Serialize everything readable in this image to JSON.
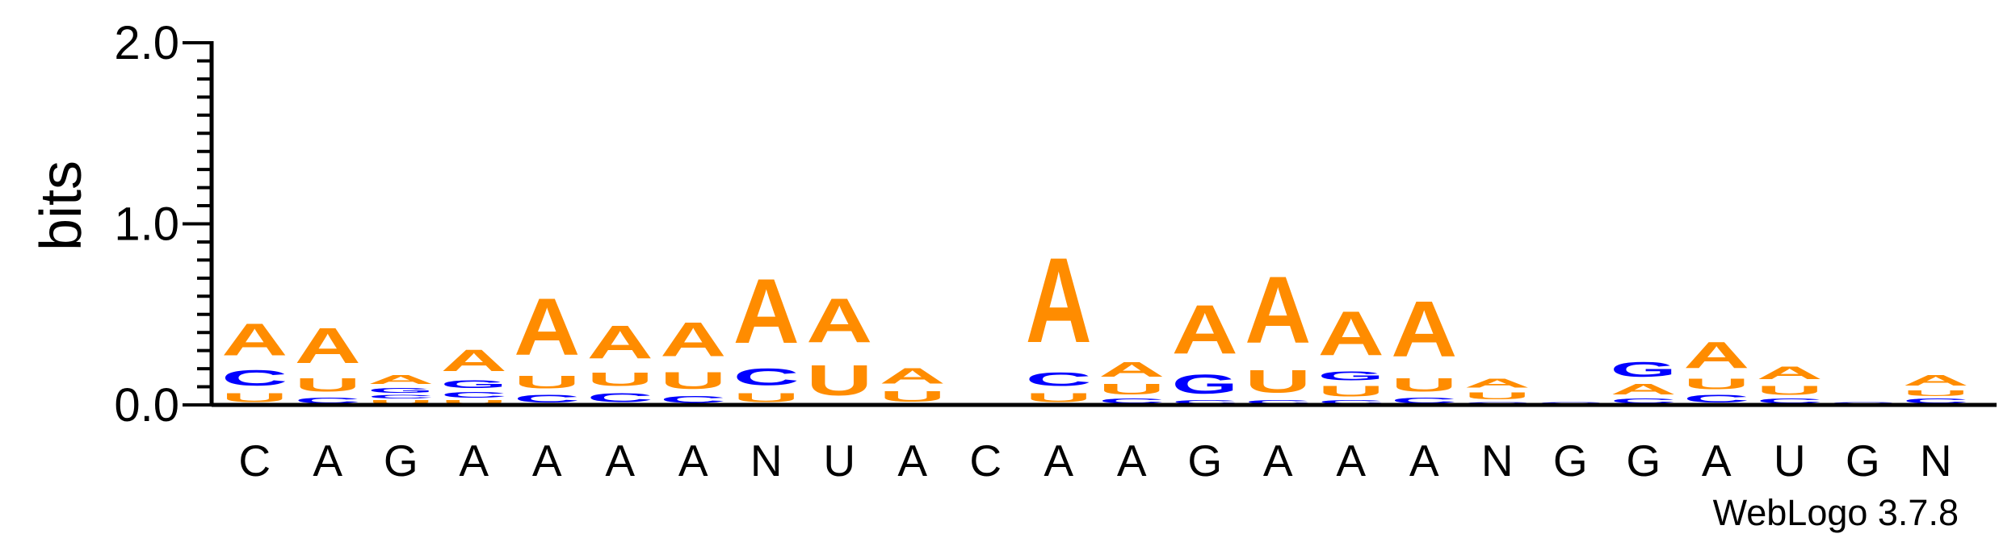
{
  "chart_data": {
    "type": "sequence-logo",
    "ylabel": "bits",
    "ylim": [
      0,
      2.0
    ],
    "yticks": [
      "0.0",
      "1.0",
      "2.0"
    ],
    "yminor_step": 0.1,
    "positions": [
      "C",
      "A",
      "G",
      "A",
      "A",
      "A",
      "A",
      "N",
      "U",
      "A",
      "C",
      "A",
      "A",
      "G",
      "A",
      "A",
      "A",
      "N",
      "G",
      "G",
      "A",
      "U",
      "G",
      "N"
    ],
    "stacks": [
      [
        {
          "l": "U",
          "h": 0.08
        },
        {
          "l": "C",
          "h": 0.14
        },
        {
          "l": "A",
          "h": 0.28
        }
      ],
      [
        {
          "l": "C",
          "h": 0.05
        },
        {
          "l": "U",
          "h": 0.12
        },
        {
          "l": "A",
          "h": 0.31
        }
      ],
      [
        {
          "l": "U",
          "h": 0.03
        },
        {
          "l": "C",
          "h": 0.03
        },
        {
          "l": "G",
          "h": 0.04
        },
        {
          "l": "A",
          "h": 0.08
        }
      ],
      [
        {
          "l": "U",
          "h": 0.03
        },
        {
          "l": "C",
          "h": 0.05
        },
        {
          "l": "G",
          "h": 0.07
        },
        {
          "l": "A",
          "h": 0.19
        }
      ],
      [
        {
          "l": "C",
          "h": 0.07
        },
        {
          "l": "U",
          "h": 0.11
        },
        {
          "l": "A",
          "h": 0.5
        }
      ],
      [
        {
          "l": "C",
          "h": 0.08
        },
        {
          "l": "U",
          "h": 0.12
        },
        {
          "l": "A",
          "h": 0.29
        }
      ],
      [
        {
          "l": "C",
          "h": 0.06
        },
        {
          "l": "U",
          "h": 0.15
        },
        {
          "l": "A",
          "h": 0.3
        }
      ],
      [
        {
          "l": "U",
          "h": 0.08
        },
        {
          "l": "C",
          "h": 0.15
        },
        {
          "l": "A",
          "h": 0.57
        }
      ],
      [
        {
          "l": "U",
          "h": 0.27
        },
        {
          "l": "A",
          "h": 0.39
        }
      ],
      [
        {
          "l": "U",
          "h": 0.09
        },
        {
          "l": "A",
          "h": 0.14
        }
      ],
      [],
      [
        {
          "l": "U",
          "h": 0.08
        },
        {
          "l": "C",
          "h": 0.12
        },
        {
          "l": "A",
          "h": 0.75
        }
      ],
      [
        {
          "l": "C",
          "h": 0.04
        },
        {
          "l": "U",
          "h": 0.09
        },
        {
          "l": "A",
          "h": 0.13
        }
      ],
      [
        {
          "l": "C",
          "h": 0.03
        },
        {
          "l": "G",
          "h": 0.17
        },
        {
          "l": "A",
          "h": 0.43
        }
      ],
      [
        {
          "l": "C",
          "h": 0.03
        },
        {
          "l": "U",
          "h": 0.2
        },
        {
          "l": "A",
          "h": 0.59
        }
      ],
      [
        {
          "l": "C",
          "h": 0.03
        },
        {
          "l": "U",
          "h": 0.09
        },
        {
          "l": "G",
          "h": 0.08
        },
        {
          "l": "A",
          "h": 0.39
        }
      ],
      [
        {
          "l": "C",
          "h": 0.05
        },
        {
          "l": "U",
          "h": 0.12
        },
        {
          "l": "A",
          "h": 0.49
        }
      ],
      [
        {
          "l": "C",
          "h": 0.02
        },
        {
          "l": "U",
          "h": 0.06
        },
        {
          "l": "A",
          "h": 0.08
        }
      ],
      [
        {
          "l": "C",
          "h": 0.02
        }
      ],
      [
        {
          "l": "C",
          "h": 0.04
        },
        {
          "l": "A",
          "h": 0.09
        },
        {
          "l": "G",
          "h": 0.13
        }
      ],
      [
        {
          "l": "C",
          "h": 0.07
        },
        {
          "l": "U",
          "h": 0.09
        },
        {
          "l": "A",
          "h": 0.23
        }
      ],
      [
        {
          "l": "C",
          "h": 0.04
        },
        {
          "l": "U",
          "h": 0.08
        },
        {
          "l": "A",
          "h": 0.11
        }
      ],
      [
        {
          "l": "C",
          "h": 0.02
        }
      ],
      [
        {
          "l": "C",
          "h": 0.04
        },
        {
          "l": "U",
          "h": 0.05
        },
        {
          "l": "A",
          "h": 0.09
        }
      ]
    ],
    "colors": {
      "A": "#ff8c00",
      "C": "#0000ff",
      "G": "#0000ff",
      "U": "#ff8c00"
    }
  },
  "footer": {
    "credit": "WebLogo 3.7.8"
  }
}
